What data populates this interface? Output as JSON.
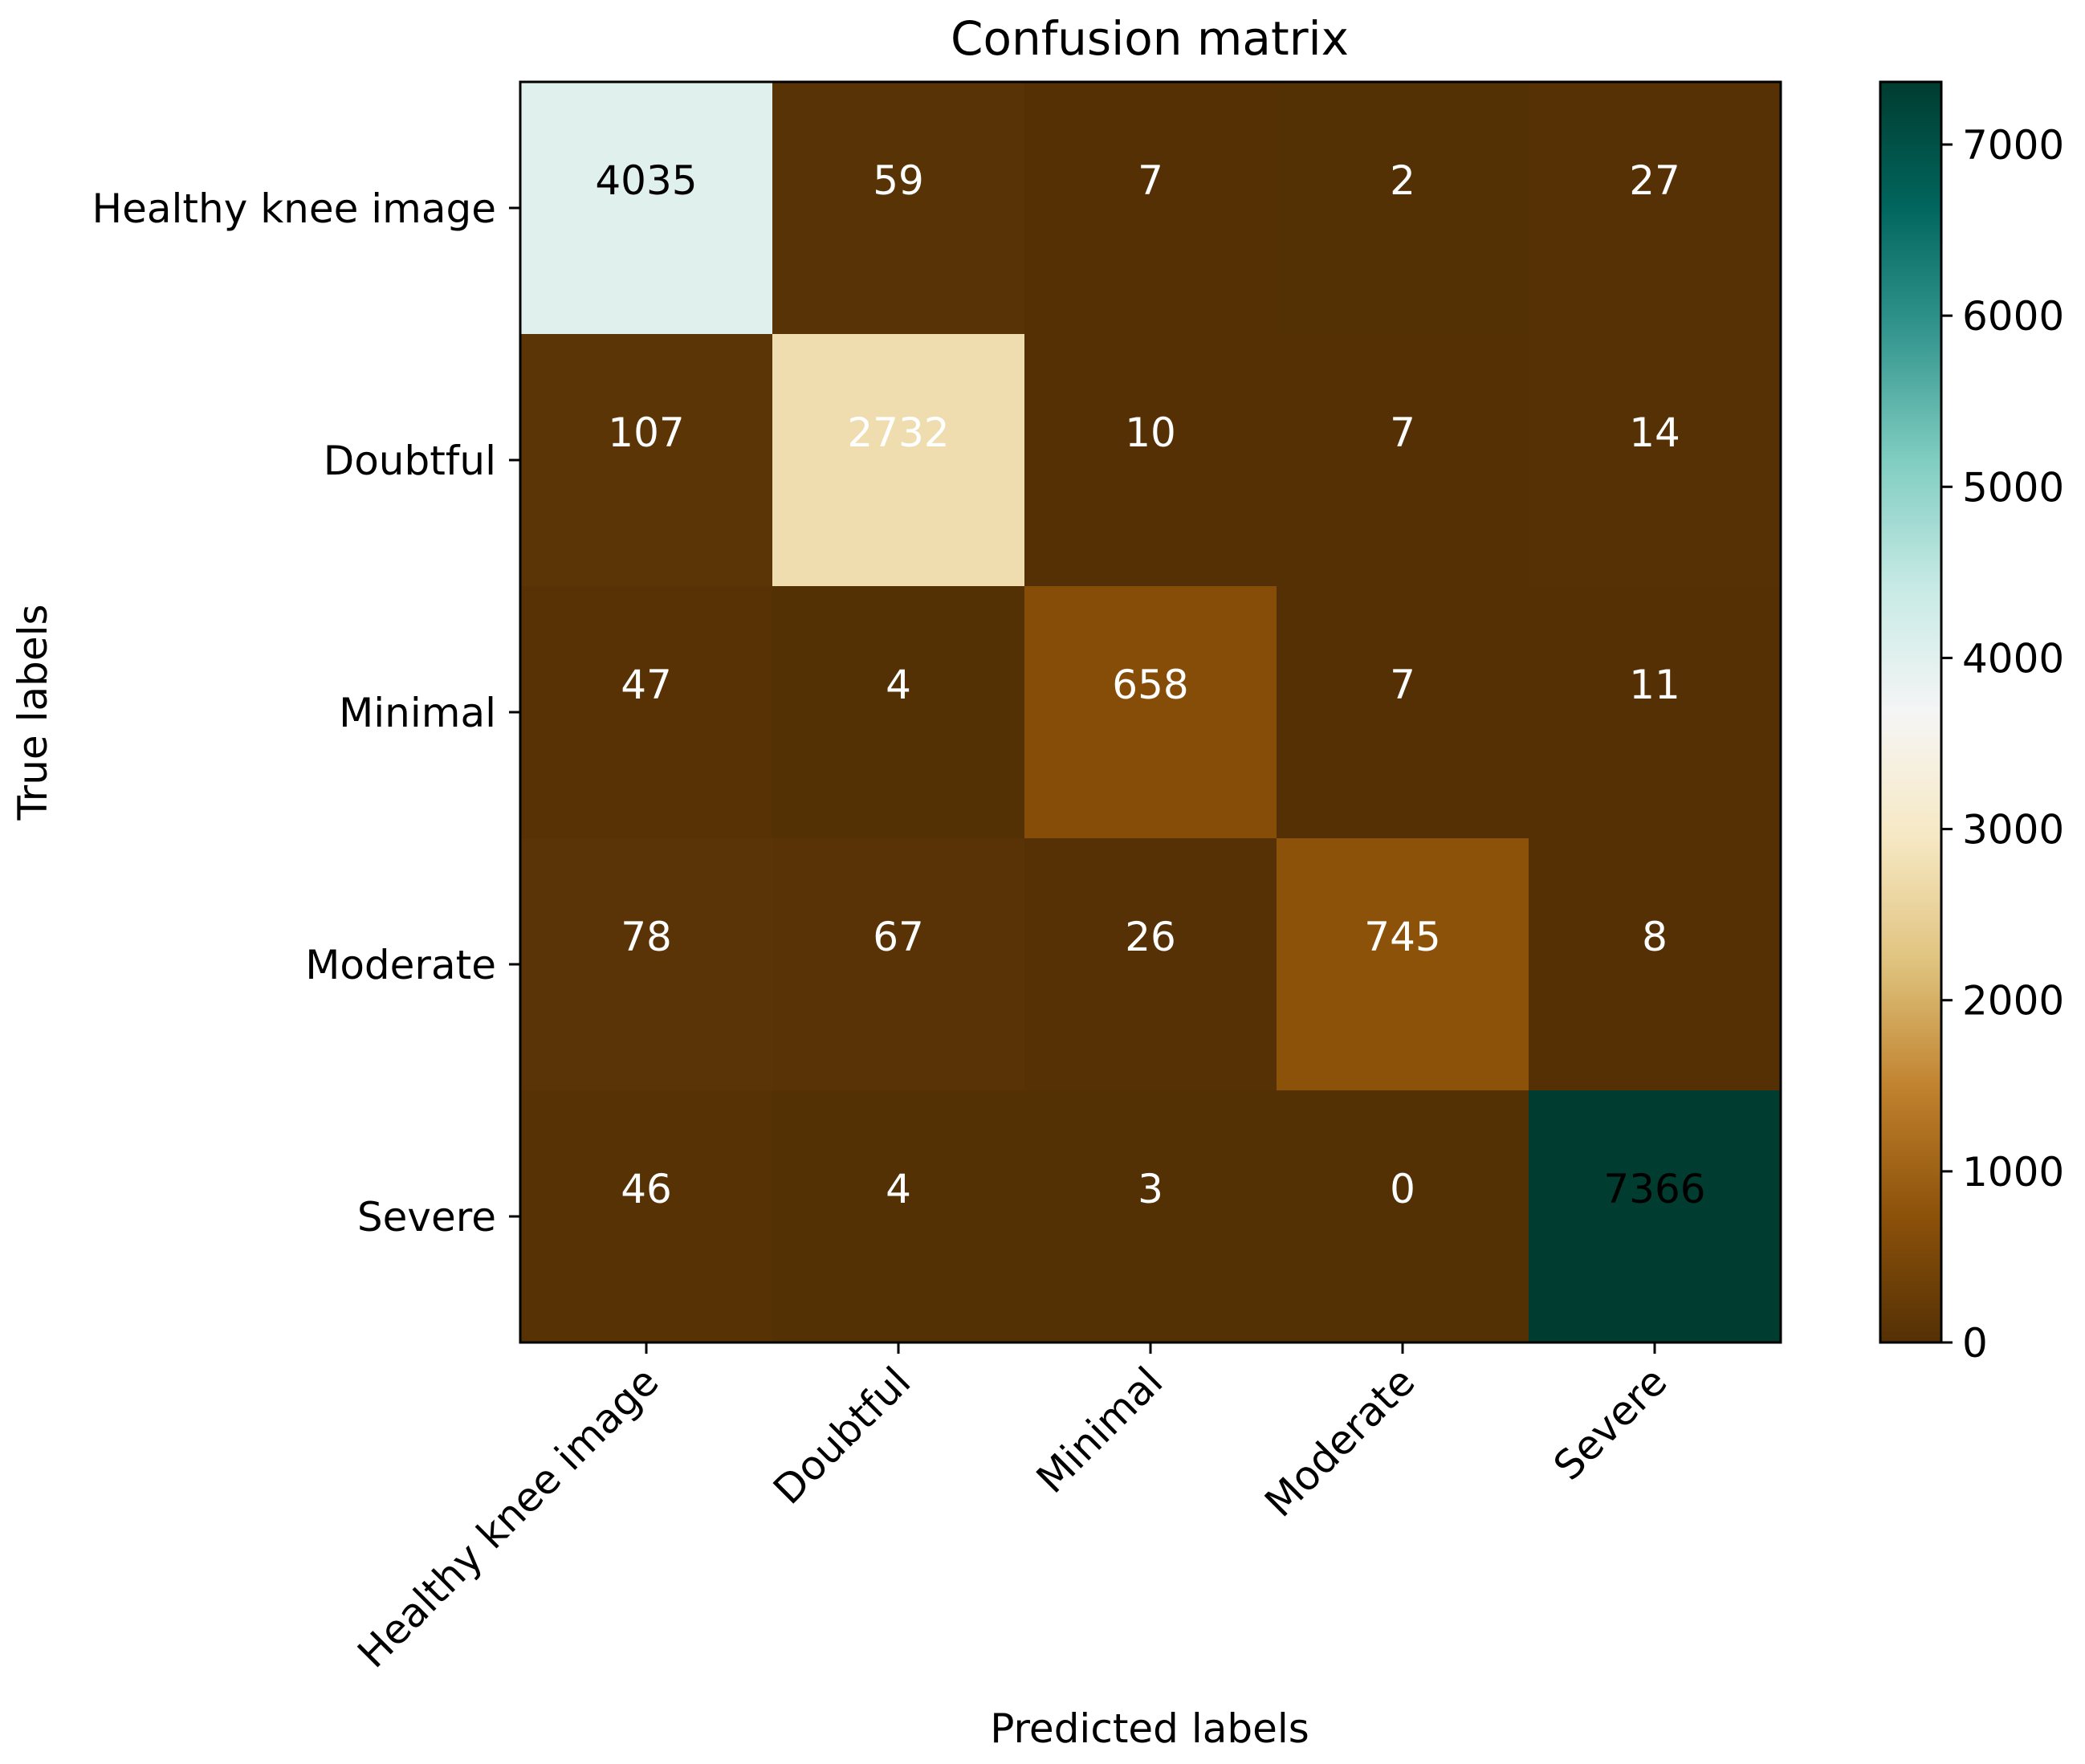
{
  "chart_data": {
    "type": "heatmap",
    "title": "Confusion matrix",
    "xlabel": "Predicted labels",
    "ylabel": "True labels",
    "x_categories": [
      "Healthy knee image",
      "Doubtful",
      "Minimal",
      "Moderate",
      "Severe"
    ],
    "y_categories": [
      "Healthy knee image",
      "Doubtful",
      "Minimal",
      "Moderate",
      "Severe"
    ],
    "values": [
      [
        4035,
        59,
        7,
        2,
        27
      ],
      [
        107,
        2732,
        10,
        7,
        14
      ],
      [
        47,
        4,
        658,
        7,
        11
      ],
      [
        78,
        67,
        26,
        745,
        8
      ],
      [
        46,
        4,
        3,
        0,
        7366
      ]
    ],
    "colormap": "BrBG",
    "colorbar": {
      "range": [
        0,
        7366
      ],
      "ticks": [
        0,
        1000,
        2000,
        3000,
        4000,
        5000,
        6000,
        7000
      ]
    },
    "grid": false
  }
}
